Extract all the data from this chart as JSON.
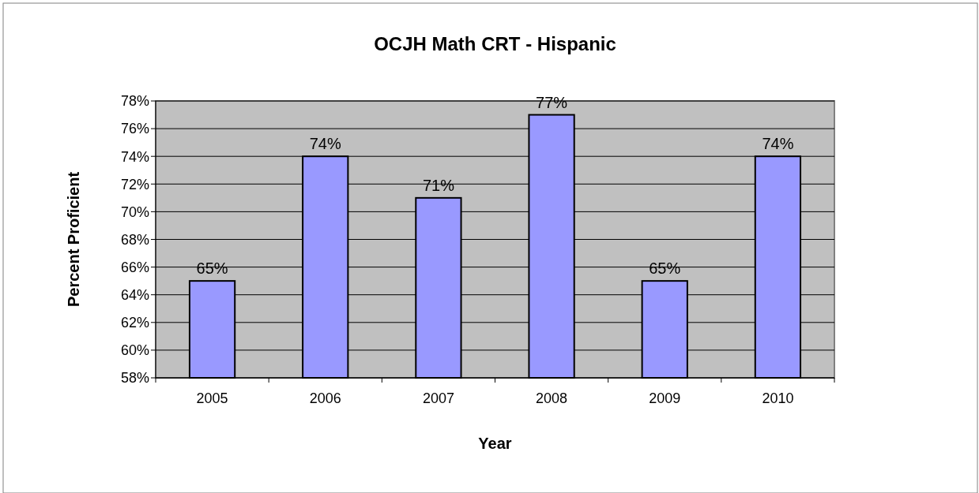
{
  "chart_data": {
    "type": "bar",
    "title": "OCJH Math CRT - Hispanic",
    "xlabel": "Year",
    "ylabel": "Percent Proficient",
    "categories": [
      "2005",
      "2006",
      "2007",
      "2008",
      "2009",
      "2010"
    ],
    "values": [
      65,
      74,
      71,
      77,
      65,
      74
    ],
    "color": "#9999ff",
    "value_labels": [
      "65%",
      "74%",
      "71%",
      "77%",
      "65%",
      "74%"
    ],
    "ylim": [
      58,
      78
    ],
    "yticks": [
      {
        "value": 58,
        "label": "58%"
      },
      {
        "value": 60,
        "label": "60%"
      },
      {
        "value": 62,
        "label": "62%"
      },
      {
        "value": 64,
        "label": "64%"
      },
      {
        "value": 66,
        "label": "66%"
      },
      {
        "value": 68,
        "label": "68%"
      },
      {
        "value": 70,
        "label": "70%"
      },
      {
        "value": 72,
        "label": "72%"
      },
      {
        "value": 74,
        "label": "74%"
      },
      {
        "value": 76,
        "label": "76%"
      },
      {
        "value": 78,
        "label": "78%"
      }
    ],
    "grid": "y"
  }
}
